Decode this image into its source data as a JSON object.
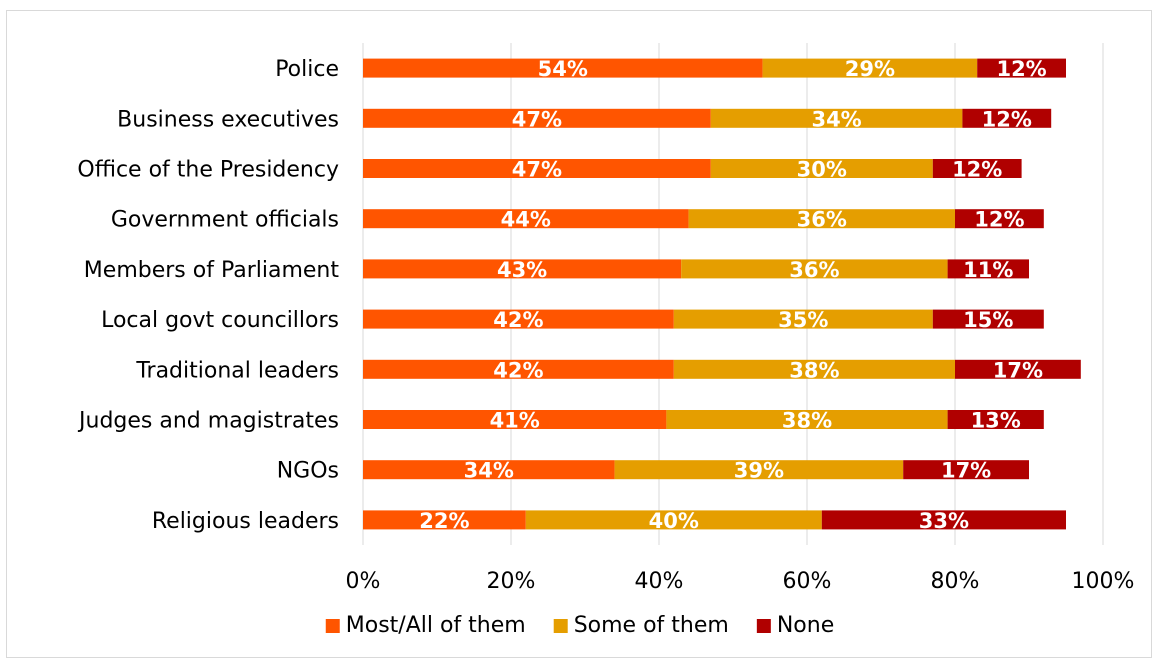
{
  "chart_data": {
    "type": "bar",
    "orientation": "horizontal",
    "stacked": true,
    "categories": [
      "Police",
      "Business executives",
      "Office of the Presidency",
      "Government officials",
      "Members of Parliament",
      "Local govt councillors",
      "Traditional leaders",
      "Judges and magistrates",
      "NGOs",
      "Religious leaders"
    ],
    "series": [
      {
        "name": "Most/All of them",
        "color": "#ff5500",
        "values": [
          54,
          47,
          47,
          44,
          43,
          42,
          42,
          41,
          34,
          22
        ],
        "labels": [
          "54%",
          "47%",
          "47%",
          "44%",
          "43%",
          "42%",
          "42%",
          "41%",
          "34%",
          "22%"
        ]
      },
      {
        "name": "Some of them",
        "color": "#e59e00",
        "values": [
          29,
          34,
          30,
          36,
          36,
          35,
          38,
          38,
          39,
          40
        ],
        "labels": [
          "29%",
          "34%",
          "30%",
          "36%",
          "36%",
          "35%",
          "38%",
          "38%",
          "39%",
          "40%"
        ]
      },
      {
        "name": "None",
        "color": "#b00000",
        "values": [
          12,
          12,
          12,
          12,
          11,
          15,
          17,
          13,
          17,
          33
        ],
        "labels": [
          "12%",
          "12%",
          "12%",
          "12%",
          "11%",
          "15%",
          "17%",
          "13%",
          "17%",
          "33%"
        ]
      }
    ],
    "xlim": [
      0,
      100
    ],
    "x_ticks": [
      "0%",
      "20%",
      "40%",
      "60%",
      "80%",
      "100%"
    ],
    "grid": true,
    "legend_position": "bottom"
  }
}
